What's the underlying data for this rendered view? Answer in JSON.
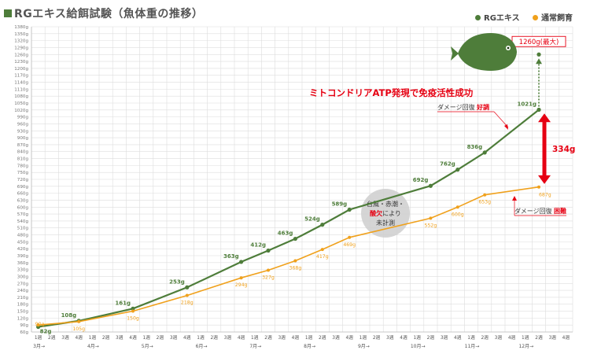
{
  "title": "RGエキス給餌試験（魚体重の推移）",
  "colors": {
    "rg": "#4e7d3a",
    "normal": "#f0a11c",
    "accent": "#e60012",
    "grid": "#dddddd",
    "fish": "#4e7d3a"
  },
  "annotations": {
    "max_label": "1260g(最大)",
    "headline": "ミトコンドリアATP発現で免疫活性成功",
    "damage_good_prefix": "ダメージ回復",
    "damage_good_word": "好調",
    "damage_bad_prefix": "ダメージ回復",
    "damage_bad_word": "困難",
    "diff_label": "334g",
    "storm_line1": "台風・赤潮・",
    "storm_line2_red": "酸欠",
    "storm_line2_rest": "により",
    "storm_line3": "未計測"
  },
  "chart_data": {
    "type": "line",
    "title": "RGエキス給餌試験（魚体重の推移）",
    "ylim": [
      60,
      1380
    ],
    "ytick_step": 30,
    "y_unit": "g",
    "grid": true,
    "legend_position": "top-right",
    "week_labels": [
      "1週",
      "2週",
      "3週",
      "4週",
      "1週",
      "2週",
      "3週",
      "4週",
      "1週",
      "2週",
      "3週",
      "4週",
      "1週",
      "2週",
      "3週",
      "4週",
      "1週",
      "2週",
      "3週",
      "4週",
      "1週",
      "2週",
      "3週",
      "4週",
      "1週",
      "2週",
      "3週",
      "4週",
      "1週",
      "2週",
      "3週",
      "4週",
      "1週",
      "2週",
      "3週",
      "4週",
      "1週",
      "2週",
      "3週",
      "4週"
    ],
    "month_labels": [
      {
        "label": "3月→",
        "week_index": 0
      },
      {
        "label": "4月→",
        "week_index": 4
      },
      {
        "label": "5月→",
        "week_index": 8
      },
      {
        "label": "6月→",
        "week_index": 12
      },
      {
        "label": "7月→",
        "week_index": 16
      },
      {
        "label": "8月→",
        "week_index": 20
      },
      {
        "label": "9月→",
        "week_index": 24
      },
      {
        "label": "10月→",
        "week_index": 28
      },
      {
        "label": "11月→",
        "week_index": 32
      },
      {
        "label": "12月→",
        "week_index": 36
      }
    ],
    "series": [
      {
        "name": "RGエキス",
        "color": "#4e7d3a",
        "points": [
          {
            "week_index": 0,
            "value": 82,
            "label": "82g"
          },
          {
            "week_index": 3,
            "value": 108,
            "label": "108g"
          },
          {
            "week_index": 7,
            "value": 161,
            "label": "161g"
          },
          {
            "week_index": 11,
            "value": 253,
            "label": "253g"
          },
          {
            "week_index": 15,
            "value": 363,
            "label": "363g"
          },
          {
            "week_index": 17,
            "value": 412,
            "label": "412g"
          },
          {
            "week_index": 19,
            "value": 463,
            "label": "463g"
          },
          {
            "week_index": 21,
            "value": 524,
            "label": "524g"
          },
          {
            "week_index": 23,
            "value": 589,
            "label": "589g"
          },
          {
            "week_index": 29,
            "value": 692,
            "label": "692g"
          },
          {
            "week_index": 31,
            "value": 762,
            "label": "762g"
          },
          {
            "week_index": 33,
            "value": 836,
            "label": "836g"
          },
          {
            "week_index": 37,
            "value": 1021,
            "label": "1021g"
          }
        ],
        "extra_point": {
          "week_index": 37,
          "value": 1260
        }
      },
      {
        "name": "通常飼育",
        "color": "#f0a11c",
        "points": [
          {
            "week_index": 0,
            "value": 90,
            "label": "90g"
          },
          {
            "week_index": 3,
            "value": 105,
            "label": "105g"
          },
          {
            "week_index": 7,
            "value": 150,
            "label": "150g"
          },
          {
            "week_index": 11,
            "value": 218,
            "label": "218g"
          },
          {
            "week_index": 15,
            "value": 294,
            "label": "294g"
          },
          {
            "week_index": 17,
            "value": 327,
            "label": "327g"
          },
          {
            "week_index": 19,
            "value": 368,
            "label": "368g"
          },
          {
            "week_index": 21,
            "value": 417,
            "label": "417g"
          },
          {
            "week_index": 23,
            "value": 469,
            "label": "469g"
          },
          {
            "week_index": 29,
            "value": 552,
            "label": "552g"
          },
          {
            "week_index": 31,
            "value": 600,
            "label": "600g"
          },
          {
            "week_index": 33,
            "value": 653,
            "label": "653g"
          },
          {
            "week_index": 37,
            "value": 687,
            "label": "687g"
          }
        ]
      }
    ]
  }
}
